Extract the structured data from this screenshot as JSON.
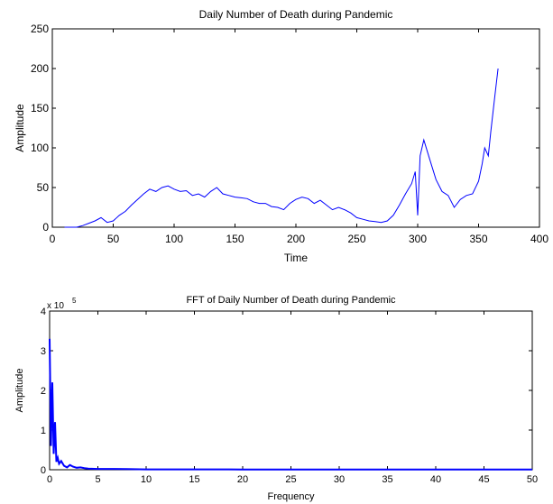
{
  "colors": {
    "line": "#0000ff",
    "axis": "#000000",
    "background": "#ffffff"
  },
  "chart_data": [
    {
      "type": "line",
      "title": "Daily Number of Death during Pandemic",
      "xlabel": "Time",
      "ylabel": "Amplitude",
      "xlim": [
        0,
        400
      ],
      "ylim": [
        0,
        250
      ],
      "xticks": [
        0,
        50,
        100,
        150,
        200,
        250,
        300,
        350,
        400
      ],
      "yticks": [
        0,
        50,
        100,
        150,
        200,
        250
      ],
      "grid": false,
      "series": [
        {
          "x": [
            10,
            20,
            25,
            30,
            35,
            40,
            45,
            50,
            55,
            60,
            65,
            70,
            75,
            80,
            85,
            90,
            95,
            100,
            105,
            110,
            115,
            120,
            125,
            130,
            135,
            140,
            145,
            150,
            155,
            160,
            165,
            170,
            175,
            180,
            185,
            190,
            195,
            200,
            205,
            210,
            215,
            220,
            225,
            230,
            235,
            240,
            245,
            250,
            255,
            260,
            265,
            270,
            275,
            280,
            285,
            290,
            295,
            298,
            300,
            302,
            305,
            310,
            315,
            320,
            325,
            330,
            335,
            340,
            345,
            350,
            353,
            355,
            358,
            360,
            363,
            366
          ],
          "y": [
            0,
            0,
            2,
            5,
            8,
            12,
            6,
            8,
            15,
            20,
            28,
            35,
            42,
            48,
            45,
            50,
            52,
            48,
            45,
            46,
            40,
            42,
            38,
            45,
            50,
            42,
            40,
            38,
            37,
            36,
            32,
            30,
            30,
            26,
            25,
            22,
            30,
            35,
            38,
            36,
            30,
            34,
            28,
            22,
            25,
            22,
            18,
            12,
            10,
            8,
            7,
            6,
            8,
            15,
            28,
            42,
            55,
            70,
            15,
            90,
            110,
            85,
            60,
            45,
            40,
            25,
            35,
            40,
            42,
            58,
            80,
            100,
            90,
            120,
            160,
            200
          ]
        }
      ]
    },
    {
      "type": "line",
      "title": "FFT of Daily Number of Death during Pandemic",
      "xlabel": "Frequency",
      "ylabel": "Amplitude",
      "xlim": [
        0,
        50
      ],
      "ylim": [
        0,
        4
      ],
      "y_multiplier": "x 10",
      "y_exponent": "5",
      "xticks": [
        0,
        5,
        10,
        15,
        20,
        25,
        30,
        35,
        40,
        45,
        50
      ],
      "yticks": [
        0,
        1,
        2,
        3,
        4
      ],
      "grid": false,
      "series": [
        {
          "x": [
            0,
            0.14,
            0.28,
            0.42,
            0.56,
            0.7,
            0.84,
            0.98,
            1.2,
            1.5,
            1.8,
            2.1,
            2.4,
            2.8,
            3.2,
            3.6,
            4,
            5,
            6,
            8,
            10,
            15,
            20,
            25,
            30,
            35,
            40,
            45,
            50
          ],
          "y": [
            3.3,
            0.6,
            2.2,
            0.4,
            1.2,
            0.2,
            0.3,
            0.15,
            0.22,
            0.1,
            0.06,
            0.12,
            0.08,
            0.05,
            0.06,
            0.04,
            0.03,
            0.02,
            0.02,
            0.015,
            0.01,
            0.008,
            0.007,
            0.006,
            0.005,
            0.005,
            0.004,
            0.004,
            0.004
          ]
        }
      ]
    }
  ]
}
